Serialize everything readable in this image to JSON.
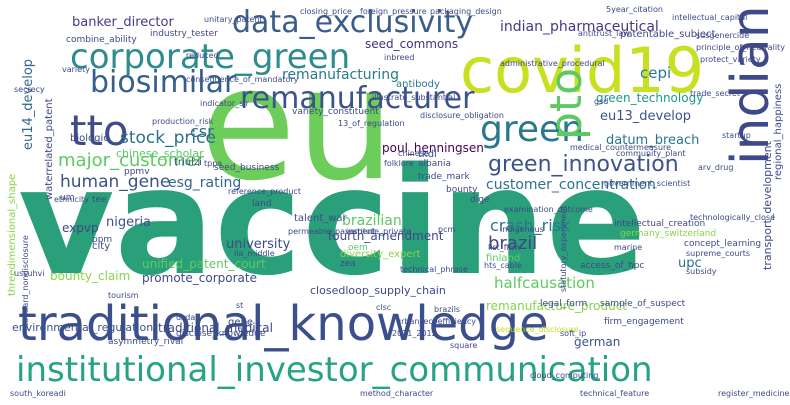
{
  "words": [
    {
      "text": "vaccine",
      "color": "#2aa07a"
    },
    {
      "text": "eu",
      "color": "#6ccd5a"
    },
    {
      "text": "traditional_knowledge",
      "color": "#3a4f8c"
    },
    {
      "text": "institutional_investor_communication",
      "color": "#26a384"
    },
    {
      "text": "covid19",
      "color": "#c7e020"
    },
    {
      "text": "corporate_green",
      "color": "#2d8d8c"
    },
    {
      "text": "data_exclusivity",
      "color": "#3c5d8a"
    },
    {
      "text": "indian",
      "color": "#3e4989"
    },
    {
      "text": "biosimilar",
      "color": "#355f8d"
    },
    {
      "text": "remanufacturer",
      "color": "#3b528b"
    },
    {
      "text": "green",
      "color": "#2a788e"
    },
    {
      "text": "tto",
      "color": "#3e4c8a"
    },
    {
      "text": "pto",
      "color": "#5ec962"
    },
    {
      "text": "green_innovation",
      "color": "#3b528b"
    },
    {
      "text": "customer_concentration",
      "color": "#2c728e"
    },
    {
      "text": "crash_risk",
      "color": "#2a788e"
    },
    {
      "text": "brazil",
      "color": "#414487"
    },
    {
      "text": "stock_price",
      "color": "#2d6f8e"
    },
    {
      "text": "major_customer",
      "color": "#5ec962"
    },
    {
      "text": "human_gene",
      "color": "#3b528b"
    },
    {
      "text": "esg_rating",
      "color": "#31688e"
    },
    {
      "text": "csr",
      "color": "#31688e"
    },
    {
      "text": "banker_director",
      "color": "#433d84"
    },
    {
      "text": "indian_pharmaceutical",
      "color": "#443983"
    },
    {
      "text": "remanufacturing",
      "color": "#2a788e"
    },
    {
      "text": "seed_commons",
      "color": "#46327e"
    },
    {
      "text": "cepi",
      "color": "#2a788e"
    },
    {
      "text": "green_technology",
      "color": "#1f9a8a"
    },
    {
      "text": "eu13_develop",
      "color": "#3b528b"
    },
    {
      "text": "datum_breach",
      "color": "#2c728e"
    },
    {
      "text": "poul_henningsen",
      "color": "#440154"
    },
    {
      "text": "eu14_develop",
      "color": "#31688e"
    },
    {
      "text": "remanufacture_product",
      "color": "#86d549"
    },
    {
      "text": "upc",
      "color": "#2c728e"
    },
    {
      "text": "halfcausation",
      "color": "#5ec962"
    },
    {
      "text": "german",
      "color": "#3b528b"
    },
    {
      "text": "unified_patent_court",
      "color": "#5ec962"
    },
    {
      "text": "promote_corporate",
      "color": "#3e4989"
    },
    {
      "text": "closedloop_supply_chain",
      "color": "#3e4989"
    },
    {
      "text": "environmental_regulation",
      "color": "#3b528b"
    },
    {
      "text": "traditional_medical",
      "color": "#3e4989"
    },
    {
      "text": "university",
      "color": "#3e4989"
    },
    {
      "text": "brazilian",
      "color": "#5ec962"
    },
    {
      "text": "fourth_amendment",
      "color": "#3e4989"
    },
    {
      "text": "nigeria",
      "color": "#3b528b"
    },
    {
      "text": "expvp",
      "color": "#3e4989"
    },
    {
      "text": "bounty_claim",
      "color": "#86d549"
    },
    {
      "text": "chinese_scholar",
      "color": "#5ec962"
    },
    {
      "text": "transport_development",
      "color": "#3e4989"
    },
    {
      "text": "regional_happiness",
      "color": "#3e4989"
    },
    {
      "text": "waterrelated_patent",
      "color": "#3e4989"
    },
    {
      "text": "threedimensional_shape",
      "color": "#86d549"
    },
    {
      "text": "biologic",
      "color": "#3e4989"
    },
    {
      "text": "antibody",
      "color": "#2a788e"
    },
    {
      "text": "combine_ability",
      "color": "#3e4989"
    },
    {
      "text": "industry_tester",
      "color": "#3e4989"
    },
    {
      "text": "patentable_subject",
      "color": "#3e4989"
    },
    {
      "text": "variety_constituent",
      "color": "#3e4989"
    },
    {
      "text": "talent_war",
      "color": "#3e4989"
    },
    {
      "text": "diversity_expert",
      "color": "#86d549"
    },
    {
      "text": "city",
      "color": "#3e4989"
    },
    {
      "text": "trade_mark",
      "color": "#3e4989"
    },
    {
      "text": "bounty",
      "color": "#3e4989"
    },
    {
      "text": "dige",
      "color": "#3e4989"
    },
    {
      "text": "finland",
      "color": "#5ec962"
    },
    {
      "text": "gene",
      "color": "#3e4989"
    },
    {
      "text": "triulzi",
      "color": "#3e4989"
    },
    {
      "text": "ppmv",
      "color": "#3e4989"
    },
    {
      "text": "tkdl",
      "color": "#3e4989"
    },
    {
      "text": "albania",
      "color": "#3e4989"
    },
    {
      "text": "seed_business",
      "color": "#3e4989"
    },
    {
      "text": "oem",
      "color": "#5ec962"
    },
    {
      "text": "zea",
      "color": "#3e4989"
    },
    {
      "text": "land",
      "color": "#3e4989"
    },
    {
      "text": "tee",
      "color": "#3e4989"
    },
    {
      "text": "um",
      "color": "#3e4989"
    },
    {
      "text": "ppm",
      "color": "#3e4989"
    },
    {
      "text": "access_of_hpc",
      "color": "#3e4989"
    },
    {
      "text": "legal_form",
      "color": "#3e4989"
    },
    {
      "text": "firm_engagement",
      "color": "#3e4989"
    },
    {
      "text": "concept_learning",
      "color": "#3e4989"
    },
    {
      "text": "supreme_courts",
      "color": "#3e4989"
    },
    {
      "text": "intellectual_creation",
      "color": "#3e4989"
    },
    {
      "text": "germany_switzerland",
      "color": "#86d549"
    },
    {
      "text": "subsidy",
      "color": "#3e4989"
    },
    {
      "text": "sample_of_suspect",
      "color": "#3e4989"
    },
    {
      "text": "sequence_disclosure",
      "color": "#c7e020"
    },
    {
      "text": "square",
      "color": "#3e4989"
    },
    {
      "text": "asymmetry_rival",
      "color": "#3e4989"
    },
    {
      "text": "disclose_knowledge",
      "color": "#3e4989"
    },
    {
      "text": "2011_2012",
      "color": "#3e4989"
    },
    {
      "text": "usda",
      "color": "#3e4989"
    },
    {
      "text": "standard_nondisclosure",
      "color": "#3e4989"
    },
    {
      "text": "trade_secret",
      "color": "#3e4989"
    },
    {
      "text": "intellectual_capital",
      "color": "#3e4989"
    },
    {
      "text": "antitrust_law",
      "color": "#3e4989"
    },
    {
      "text": "administrative_procedural",
      "color": "#3e4989"
    },
    {
      "text": "consequence_of_mandatory",
      "color": "#3e4989"
    },
    {
      "text": "production_risk",
      "color": "#3e4989"
    },
    {
      "text": "disclosure_obligation",
      "color": "#3e4989"
    },
    {
      "text": "reference_product",
      "color": "#3e4989"
    },
    {
      "text": "permeable_pavement",
      "color": "#3e4989"
    },
    {
      "text": "technical_phrase",
      "color": "#3e4989"
    },
    {
      "text": "urban_ecoefficiency",
      "color": "#3e4989"
    },
    {
      "text": "medical_countermeasure",
      "color": "#3e4989"
    },
    {
      "text": "technologically_close",
      "color": "#3e4989"
    },
    {
      "text": "community_plant",
      "color": "#3e4989"
    },
    {
      "text": "indigenous",
      "color": "#3e4989"
    },
    {
      "text": "list_firm",
      "color": "#3e4989"
    },
    {
      "text": "marine",
      "color": "#3e4989"
    },
    {
      "text": "arv_drug",
      "color": "#3e4989"
    },
    {
      "text": "government_scientist",
      "color": "#3e4989"
    },
    {
      "text": "13_of_regulation",
      "color": "#3e4989"
    },
    {
      "text": "packaging_design",
      "color": "#3e4989"
    },
    {
      "text": "unitary_patent",
      "color": "#3e4989"
    },
    {
      "text": "closing_price",
      "color": "#3e4989"
    },
    {
      "text": "inbreed",
      "color": "#3e4989"
    },
    {
      "text": "folklore",
      "color": "#3e4989"
    },
    {
      "text": "hts_cable",
      "color": "#3e4989"
    },
    {
      "text": "clsc",
      "color": "#3e4989"
    },
    {
      "text": "brazils",
      "color": "#3e4989"
    },
    {
      "text": "soft_ip",
      "color": "#3e4989"
    },
    {
      "text": "method_character",
      "color": "#3e4989"
    },
    {
      "text": "register_medicine",
      "color": "#3e4989"
    },
    {
      "text": "south_koreadi",
      "color": "#3e4989"
    },
    {
      "text": "tppa",
      "color": "#3e4989"
    },
    {
      "text": "gsd",
      "color": "#3e4989"
    },
    {
      "text": "startup",
      "color": "#3e4989"
    },
    {
      "text": "secrecy",
      "color": "#3e4989"
    },
    {
      "text": "variety",
      "color": "#3e4989"
    },
    {
      "text": "protect_variety",
      "color": "#3e4989"
    },
    {
      "text": "susgenercide",
      "color": "#3e4989"
    },
    {
      "text": "principle_of_neutrality",
      "color": "#3e4989"
    },
    {
      "text": "foreign_pressure",
      "color": "#3e4989"
    },
    {
      "text": "5year_citation",
      "color": "#3e4989"
    },
    {
      "text": "reduced",
      "color": "#3e4989"
    },
    {
      "text": "st",
      "color": "#3e4989"
    },
    {
      "text": "cloud_computing",
      "color": "#3e4989"
    },
    {
      "text": "examination_outcome",
      "color": "#3e4989"
    },
    {
      "text": "ethnicity",
      "color": "#3e4989"
    },
    {
      "text": "indicator_sjr",
      "color": "#3e4989"
    },
    {
      "text": "illustrate_substantial",
      "color": "#3e4989"
    },
    {
      "text": "statutory_experiment",
      "color": "#3e4989"
    },
    {
      "text": "institute_private",
      "color": "#3e4989"
    },
    {
      "text": "lia_middle",
      "color": "#3e4989"
    },
    {
      "text": "pcm",
      "color": "#3e4989"
    },
    {
      "text": "tourism",
      "color": "#3e4989"
    },
    {
      "text": "chinese",
      "color": "#3e4989"
    },
    {
      "text": "ussuhvi",
      "color": "#3e4989"
    },
    {
      "text": "technical_feature",
      "color": "#3e4989"
    }
  ]
}
